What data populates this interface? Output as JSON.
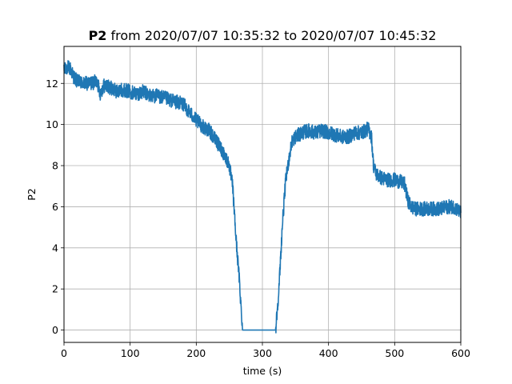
{
  "chart_data": {
    "type": "line",
    "title_bold": "P2",
    "title_rest": " from 2020/07/07 10:35:32 to 2020/07/07 10:45:32",
    "xlabel": "time (s)",
    "ylabel": "P2",
    "xlim": [
      0,
      600
    ],
    "ylim": [
      -0.6,
      13.8
    ],
    "xticks": [
      0,
      100,
      200,
      300,
      400,
      500,
      600
    ],
    "yticks": [
      0,
      2,
      4,
      6,
      8,
      10,
      12
    ],
    "grid": true,
    "series": [
      {
        "color": "#1f77b4",
        "x": [
          0,
          5,
          10,
          15,
          20,
          30,
          40,
          50,
          55,
          60,
          70,
          80,
          90,
          100,
          110,
          120,
          130,
          140,
          150,
          160,
          170,
          180,
          190,
          200,
          210,
          220,
          230,
          240,
          250,
          255,
          260,
          265,
          270,
          275,
          280,
          290,
          300,
          310,
          315,
          320,
          325,
          330,
          335,
          340,
          345,
          350,
          360,
          370,
          380,
          390,
          400,
          410,
          420,
          430,
          440,
          450,
          460,
          465,
          468,
          472,
          480,
          490,
          500,
          510,
          515,
          520,
          525,
          530,
          540,
          550,
          560,
          570,
          580,
          590,
          600
        ],
        "y": [
          12.6,
          12.8,
          12.7,
          12.3,
          12.1,
          12.0,
          12.0,
          12.1,
          11.5,
          11.9,
          11.8,
          11.6,
          11.7,
          11.6,
          11.5,
          11.6,
          11.4,
          11.4,
          11.3,
          11.2,
          11.1,
          11.0,
          10.6,
          10.2,
          9.9,
          9.7,
          9.2,
          8.7,
          8.0,
          7.0,
          4.5,
          2.5,
          0.0,
          0.0,
          0.0,
          0.0,
          0.0,
          0.0,
          0.0,
          0.0,
          2.0,
          5.0,
          7.2,
          8.3,
          9.2,
          9.4,
          9.6,
          9.7,
          9.6,
          9.7,
          9.6,
          9.5,
          9.4,
          9.4,
          9.6,
          9.6,
          9.8,
          9.4,
          8.0,
          7.6,
          7.4,
          7.3,
          7.3,
          7.2,
          7.1,
          6.3,
          6.0,
          5.9,
          5.9,
          5.9,
          5.9,
          5.9,
          6.0,
          6.0,
          5.7
        ]
      }
    ]
  }
}
